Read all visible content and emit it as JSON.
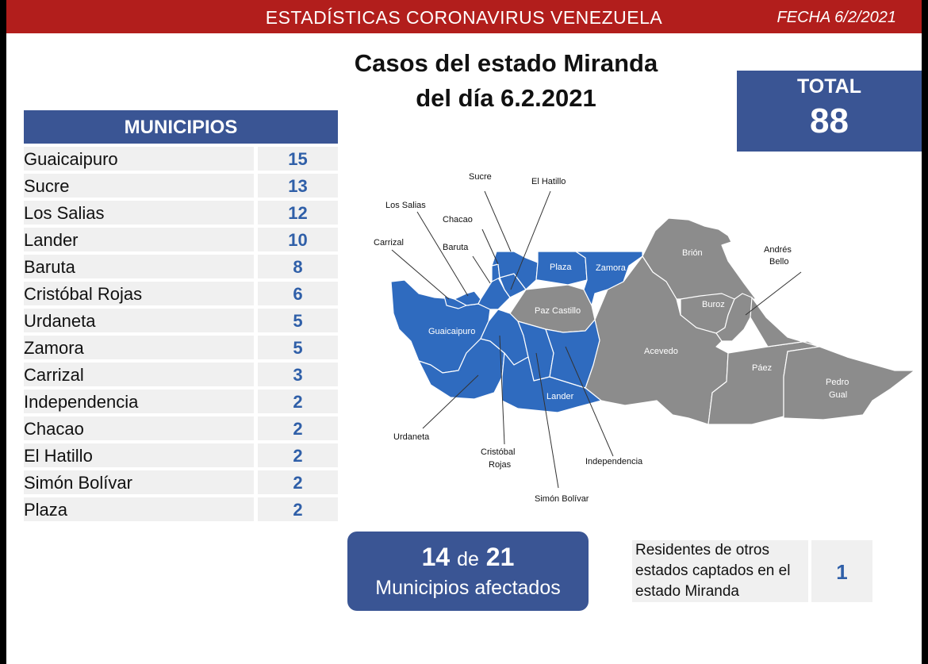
{
  "header": {
    "title": "ESTADÍSTICAS CORONAVIRUS VENEZUELA",
    "date": "FECHA 6/2/2021"
  },
  "main_title": {
    "line1": "Casos del estado Miranda",
    "line2": "del día 6.2.2021"
  },
  "total": {
    "label": "TOTAL",
    "value": "88"
  },
  "municipios_header": "MUNICIPIOS",
  "municipios": [
    {
      "name": "Guaicaipuro",
      "count": "15"
    },
    {
      "name": "Sucre",
      "count": "13"
    },
    {
      "name": "Los Salias",
      "count": "12"
    },
    {
      "name": "Lander",
      "count": "10"
    },
    {
      "name": "Baruta",
      "count": "8"
    },
    {
      "name": "Cristóbal Rojas",
      "count": "6"
    },
    {
      "name": "Urdaneta",
      "count": "5"
    },
    {
      "name": "Zamora",
      "count": "5"
    },
    {
      "name": "Carrizal",
      "count": "3"
    },
    {
      "name": "Independencia",
      "count": "2"
    },
    {
      "name": "Chacao",
      "count": "2"
    },
    {
      "name": "El Hatillo",
      "count": "2"
    },
    {
      "name": "Simón Bolívar",
      "count": "2"
    },
    {
      "name": "Plaza",
      "count": "2"
    }
  ],
  "affected": {
    "count": "14",
    "connector": "de",
    "total": "21",
    "label": "Municipios afectados"
  },
  "residents": {
    "line1": "Residentes de otros",
    "line2": "estados captados en el",
    "line3": "estado Miranda",
    "value": "1"
  },
  "map": {
    "colors": {
      "affected": "#2f6bbf",
      "unaffected": "#8c8c8c",
      "border": "#ffffff"
    },
    "labels": {
      "sucre": "Sucre",
      "el_hatillo": "El Hatillo",
      "los_salias": "Los Salias",
      "chacao": "Chacao",
      "carrizal": "Carrizal",
      "baruta": "Baruta",
      "plaza": "Plaza",
      "zamora": "Zamora",
      "brion": "Brión",
      "andres_bello_1": "Andrés",
      "andres_bello_2": "Bello",
      "buroz": "Buroz",
      "paz_castillo": "Paz Castillo",
      "guaicaipuro": "Guaicaipuro",
      "acevedo": "Acevedo",
      "paez": "Páez",
      "pedro_gual_1": "Pedro",
      "pedro_gual_2": "Gual",
      "lander": "Lander",
      "urdaneta": "Urdaneta",
      "cristobal_rojas_1": "Cristóbal",
      "cristobal_rojas_2": "Rojas",
      "independencia": "Independencia",
      "simon_bolivar": "Simón Bolívar"
    }
  }
}
